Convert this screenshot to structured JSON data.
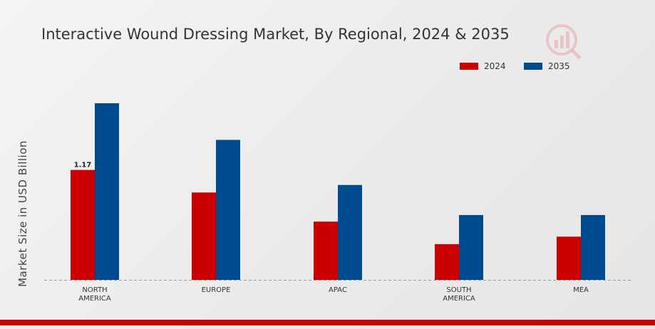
{
  "chart_data": {
    "type": "bar",
    "title": "Interactive Wound Dressing Market, By Regional, 2024 & 2035",
    "ylabel": "Market Size in USD Billion",
    "xlabel": "",
    "categories": [
      [
        "NORTH",
        "AMERICA"
      ],
      [
        "EUROPE"
      ],
      [
        "APAC"
      ],
      [
        "SOUTH",
        "AMERICA"
      ],
      [
        "MEA"
      ]
    ],
    "series": [
      {
        "name": "2024",
        "color": "#cc0000",
        "values": [
          1.17,
          0.93,
          0.62,
          0.38,
          0.46
        ]
      },
      {
        "name": "2035",
        "color": "#004a8f",
        "values": [
          1.88,
          1.49,
          1.01,
          0.69,
          0.69
        ]
      }
    ],
    "data_labels": [
      {
        "series": 0,
        "index": 0,
        "text": "1.17"
      }
    ],
    "ylim": [
      0,
      2.6
    ],
    "grid": false,
    "legend_position": "top-right"
  },
  "legend": {
    "items": [
      "2024",
      "2035"
    ]
  }
}
